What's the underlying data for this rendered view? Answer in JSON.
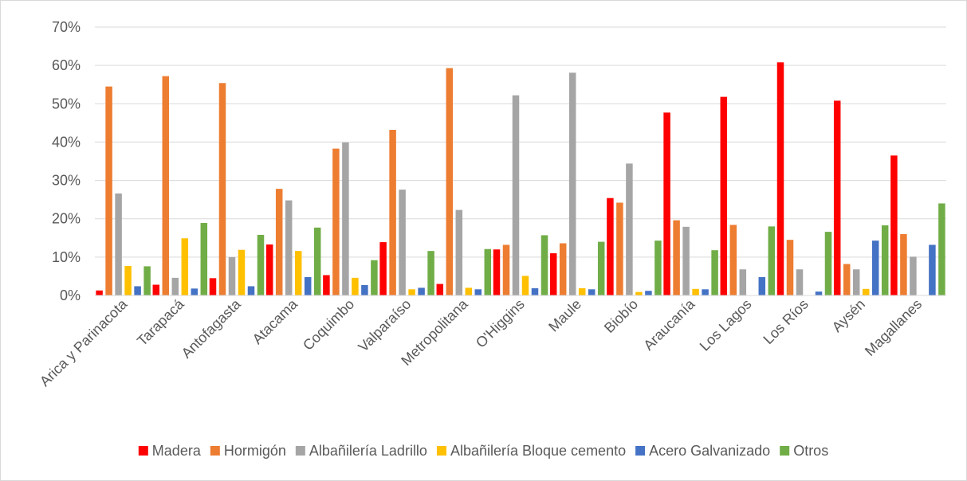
{
  "chart_data": {
    "type": "bar",
    "title": "",
    "xlabel": "",
    "ylabel": "",
    "ylim": [
      0,
      0.7
    ],
    "yticks": [
      0,
      0.1,
      0.2,
      0.3,
      0.4,
      0.5,
      0.6,
      0.7
    ],
    "ytick_labels": [
      "0%",
      "10%",
      "20%",
      "30%",
      "40%",
      "50%",
      "60%",
      "70%"
    ],
    "grid": true,
    "legend_position": "bottom",
    "categories": [
      "Arica y Parinacota",
      "Tarapacá",
      "Antofagasta",
      "Atacama",
      "Coquimbo",
      "Valparaíso",
      "Metropolitana",
      "O'Higgins",
      "Maule",
      "Biobío",
      "Araucanía",
      "Los Lagos",
      "Los Ríos",
      "Aysén",
      "Magallanes"
    ],
    "series": [
      {
        "name": "Madera",
        "color": "#ff0000",
        "values": [
          0.013,
          0.028,
          0.045,
          0.133,
          0.053,
          0.139,
          0.03,
          0.12,
          0.11,
          0.254,
          0.477,
          0.518,
          0.608,
          0.508,
          0.365
        ]
      },
      {
        "name": "Hormigón",
        "color": "#ed7d31",
        "values": [
          0.545,
          0.572,
          0.554,
          0.278,
          0.383,
          0.432,
          0.593,
          0.132,
          0.136,
          0.242,
          0.196,
          0.184,
          0.145,
          0.082,
          0.16
        ]
      },
      {
        "name": "Albañilería Ladrillo",
        "color": "#a5a5a5",
        "values": [
          0.266,
          0.046,
          0.1,
          0.248,
          0.399,
          0.276,
          0.223,
          0.522,
          0.581,
          0.344,
          0.179,
          0.068,
          0.068,
          0.068,
          0.101
        ]
      },
      {
        "name": "Albañilería Bloque cemento",
        "color": "#ffc000",
        "values": [
          0.077,
          0.149,
          0.119,
          0.116,
          0.046,
          0.016,
          0.02,
          0.051,
          0.019,
          0.009,
          0.017,
          0.0,
          0.0,
          0.017,
          0.0
        ]
      },
      {
        "name": "Acero Galvanizado",
        "color": "#4472c4",
        "values": [
          0.024,
          0.018,
          0.024,
          0.048,
          0.027,
          0.02,
          0.016,
          0.019,
          0.016,
          0.012,
          0.016,
          0.048,
          0.01,
          0.143,
          0.132
        ]
      },
      {
        "name": "Otros",
        "color": "#70ad47",
        "values": [
          0.076,
          0.189,
          0.158,
          0.177,
          0.092,
          0.116,
          0.121,
          0.157,
          0.14,
          0.143,
          0.118,
          0.18,
          0.166,
          0.183,
          0.24
        ]
      }
    ],
    "colors": {
      "grid": "#d9d9d9",
      "axis": "#d9d9d9",
      "text": "#595959"
    }
  }
}
